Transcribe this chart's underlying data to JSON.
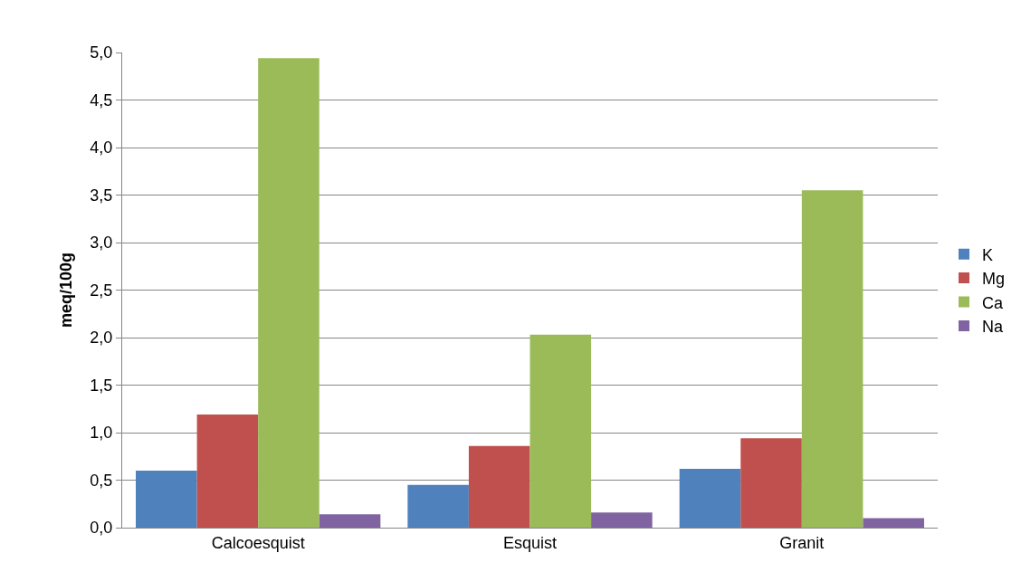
{
  "chart_data": {
    "type": "bar",
    "ylabel": "meq/100g",
    "categories": [
      "Calcoesquist",
      "Esquist",
      "Granit"
    ],
    "series": [
      {
        "name": "K",
        "color": "#4f81bd",
        "values": [
          0.6,
          0.45,
          0.62
        ]
      },
      {
        "name": "Mg",
        "color": "#c0504d",
        "values": [
          1.19,
          0.86,
          0.94
        ]
      },
      {
        "name": "Ca",
        "color": "#9bbb59",
        "values": [
          4.94,
          2.03,
          3.55
        ]
      },
      {
        "name": "Na",
        "color": "#8064a2",
        "values": [
          0.14,
          0.16,
          0.1
        ]
      }
    ],
    "ylim": [
      0,
      5
    ],
    "yticks": [
      {
        "value": 0,
        "label": "0,0"
      },
      {
        "value": 0.5,
        "label": "0,5"
      },
      {
        "value": 1,
        "label": "1,0"
      },
      {
        "value": 1.5,
        "label": "1,5"
      },
      {
        "value": 2,
        "label": "2,0"
      },
      {
        "value": 2.5,
        "label": "2,5"
      },
      {
        "value": 3,
        "label": "3,0"
      },
      {
        "value": 3.5,
        "label": "3,5"
      },
      {
        "value": 4,
        "label": "4,0"
      },
      {
        "value": 4.5,
        "label": "4,5"
      },
      {
        "value": 5,
        "label": "5,0"
      }
    ],
    "grid": "y",
    "legend": "right"
  }
}
